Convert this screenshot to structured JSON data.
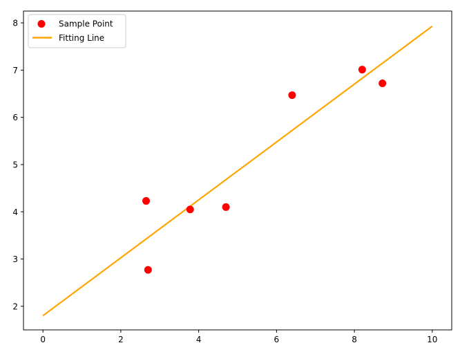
{
  "chart_data": {
    "type": "scatter",
    "title": "",
    "xlabel": "",
    "ylabel": "",
    "xlim": [
      -0.5,
      10.5
    ],
    "ylim": [
      1.5,
      8.25
    ],
    "xticks": [
      0,
      2,
      4,
      6,
      8,
      10
    ],
    "yticks": [
      2,
      3,
      4,
      5,
      6,
      7,
      8
    ],
    "grid": false,
    "legend_position": "top-left",
    "series": [
      {
        "name": "Sample Point",
        "kind": "scatter",
        "color": "#ff0000",
        "points": [
          {
            "x": 2.65,
            "y": 4.23
          },
          {
            "x": 2.7,
            "y": 2.77
          },
          {
            "x": 3.78,
            "y": 4.05
          },
          {
            "x": 4.7,
            "y": 4.1
          },
          {
            "x": 6.4,
            "y": 6.47
          },
          {
            "x": 8.2,
            "y": 7.01
          },
          {
            "x": 8.72,
            "y": 6.72
          }
        ]
      },
      {
        "name": "Fitting Line",
        "kind": "line",
        "color": "#ffa500",
        "points": [
          {
            "x": 0,
            "y": 1.8
          },
          {
            "x": 10,
            "y": 7.93
          }
        ]
      }
    ]
  }
}
